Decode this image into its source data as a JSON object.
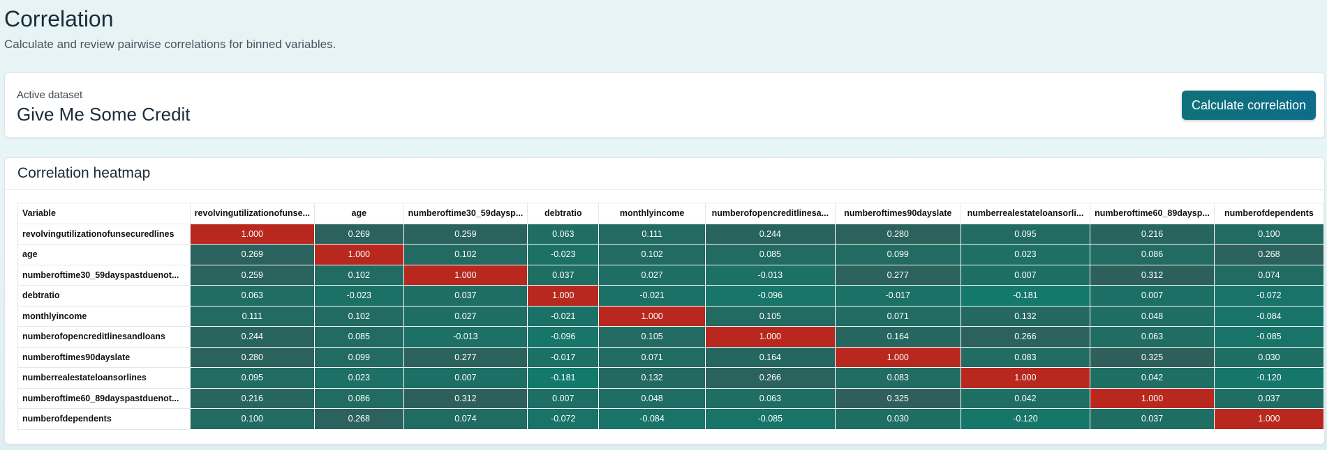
{
  "header": {
    "title": "Correlation",
    "subtitle": "Calculate and review pairwise correlations for binned variables."
  },
  "dataset": {
    "label": "Active dataset",
    "name": "Give Me Some Credit",
    "button_label": "Calculate correlation"
  },
  "heatmap": {
    "title": "Correlation heatmap",
    "corner_label": "Variable",
    "column_labels": [
      "revolvingutilizationofunse...",
      "age",
      "numberoftime30_59daysp...",
      "debtratio",
      "monthlyincome",
      "numberofopencreditlinesa...",
      "numberoftimes90dayslate",
      "numberrealestateloansorli...",
      "numberoftime60_89daysp...",
      "numberofdependents"
    ],
    "row_labels": [
      "revolvingutilizationofunsecuredlines",
      "age",
      "numberoftime30_59dayspastduenot...",
      "debtratio",
      "monthlyincome",
      "numberofopencreditlinesandloans",
      "numberoftimes90dayslate",
      "numberrealestateloansorlines",
      "numberoftime60_89dayspastduenot...",
      "numberofdependents"
    ],
    "colors": {
      "diagonal": "#b8281e",
      "negative": "#127a6c",
      "positive": "#2f5e5a"
    }
  },
  "chart_data": {
    "type": "heatmap",
    "title": "Correlation heatmap",
    "values": [
      [
        "1.000",
        "0.269",
        "0.259",
        "0.063",
        "0.111",
        "0.244",
        "0.280",
        "0.095",
        "0.216",
        "0.100"
      ],
      [
        "0.269",
        "1.000",
        "0.102",
        "-0.023",
        "0.102",
        "0.085",
        "0.099",
        "0.023",
        "0.086",
        "0.268"
      ],
      [
        "0.259",
        "0.102",
        "1.000",
        "0.037",
        "0.027",
        "-0.013",
        "0.277",
        "0.007",
        "0.312",
        "0.074"
      ],
      [
        "0.063",
        "-0.023",
        "0.037",
        "1.000",
        "-0.021",
        "-0.096",
        "-0.017",
        "-0.181",
        "0.007",
        "-0.072"
      ],
      [
        "0.111",
        "0.102",
        "0.027",
        "-0.021",
        "1.000",
        "0.105",
        "0.071",
        "0.132",
        "0.048",
        "-0.084"
      ],
      [
        "0.244",
        "0.085",
        "-0.013",
        "-0.096",
        "0.105",
        "1.000",
        "0.164",
        "0.266",
        "0.063",
        "-0.085"
      ],
      [
        "0.280",
        "0.099",
        "0.277",
        "-0.017",
        "0.071",
        "0.164",
        "1.000",
        "0.083",
        "0.325",
        "0.030"
      ],
      [
        "0.095",
        "0.023",
        "0.007",
        "-0.181",
        "0.132",
        "0.266",
        "0.083",
        "1.000",
        "0.042",
        "-0.120"
      ],
      [
        "0.216",
        "0.086",
        "0.312",
        "0.007",
        "0.048",
        "0.063",
        "0.325",
        "0.042",
        "1.000",
        "0.037"
      ],
      [
        "0.100",
        "0.268",
        "0.074",
        "-0.072",
        "-0.084",
        "-0.085",
        "0.030",
        "-0.120",
        "0.037",
        "1.000"
      ]
    ]
  }
}
